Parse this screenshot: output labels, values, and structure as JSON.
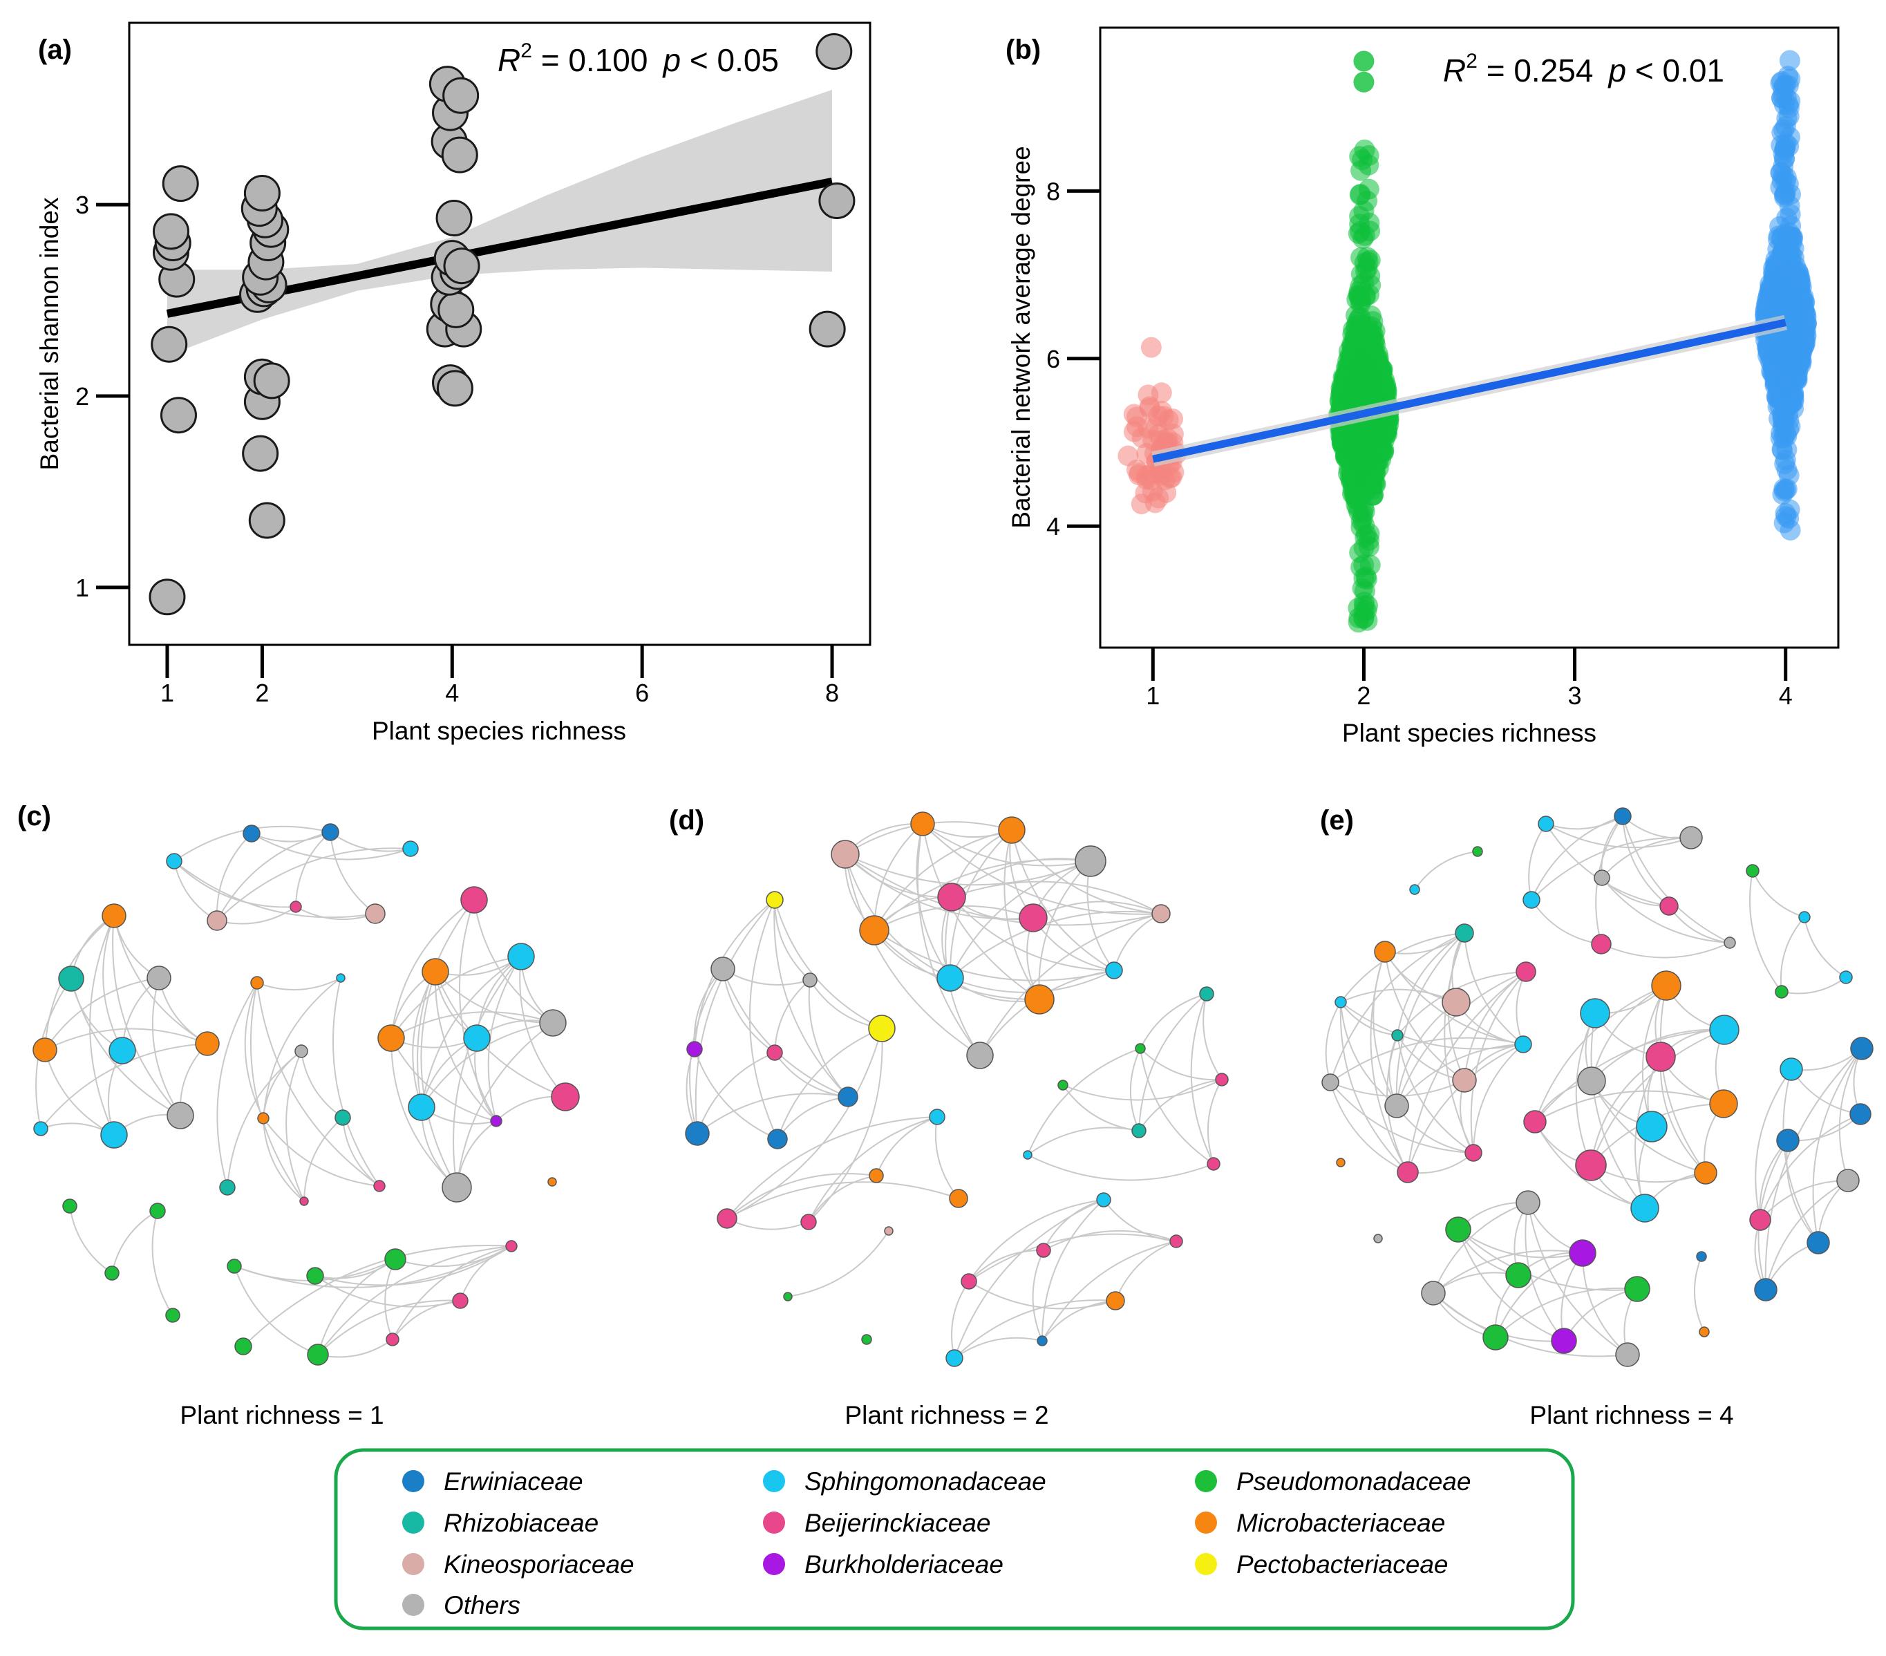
{
  "colors": {
    "Erwiniaceae": "#1a7fc7",
    "Rhizobiaceae": "#17b8a4",
    "Kineosporiaceae": "#d9aca8",
    "Others": "#b3b3b3",
    "Sphingomonadaceae": "#18c6ef",
    "Beijerinckiaceae": "#e8478c",
    "Burkholderiaceae": "#a718e2",
    "Pseudomonadaceae": "#1cbe3a",
    "Microbacteriaceae": "#f68512",
    "Pectobacteriaceae": "#f7ef12",
    "pointGrey": "#b4b4b4",
    "ciGrey": "#d6d6d6",
    "edgeGrey": "#c9c9c9",
    "greenPoints": "#0fbf3a",
    "pinkPoints": "#f4857f",
    "bluePoints": "#3a9bf2",
    "fitBlue": "#1a63e8",
    "legendBorder": "#19a84a"
  },
  "chart_data": [
    {
      "id": "a",
      "panel_label": "(a)",
      "type": "scatter",
      "xlabel": "Plant species richness",
      "ylabel": "Bacterial shannon index",
      "xlim": [
        0.6,
        8.4
      ],
      "ylim": [
        0.7,
        3.95
      ],
      "xticks": [
        1,
        2,
        4,
        6,
        8
      ],
      "yticks": [
        1,
        2,
        3
      ],
      "stats": {
        "r2_prefix": "R",
        "r2_sup": "2",
        "r2_text": " = 0.100",
        "p_prefix": "p",
        "p_text": " < 0.05"
      },
      "fit": {
        "x": [
          1,
          8
        ],
        "y": [
          2.43,
          3.12
        ]
      },
      "ci_upper": [
        [
          1,
          2.66
        ],
        [
          2,
          2.66
        ],
        [
          3,
          2.69
        ],
        [
          4,
          2.83
        ],
        [
          5,
          3.05
        ],
        [
          6,
          3.25
        ],
        [
          7,
          3.43
        ],
        [
          8,
          3.6
        ]
      ],
      "ci_lower": [
        [
          1,
          2.21
        ],
        [
          2,
          2.4
        ],
        [
          3,
          2.55
        ],
        [
          4,
          2.63
        ],
        [
          5,
          2.66
        ],
        [
          6,
          2.67
        ],
        [
          7,
          2.66
        ],
        [
          8,
          2.65
        ]
      ],
      "points": [
        {
          "x": 1.0,
          "y": 0.95
        },
        {
          "x": 1.12,
          "y": 1.9
        },
        {
          "x": 1.02,
          "y": 2.27
        },
        {
          "x": 1.1,
          "y": 2.61
        },
        {
          "x": 1.04,
          "y": 2.75
        },
        {
          "x": 1.06,
          "y": 2.8
        },
        {
          "x": 1.04,
          "y": 2.86
        },
        {
          "x": 1.14,
          "y": 3.11
        },
        {
          "x": 1.98,
          "y": 1.7
        },
        {
          "x": 2.05,
          "y": 1.35
        },
        {
          "x": 2.0,
          "y": 1.97
        },
        {
          "x": 2.0,
          "y": 2.1
        },
        {
          "x": 2.1,
          "y": 2.08
        },
        {
          "x": 1.95,
          "y": 2.53
        },
        {
          "x": 2.02,
          "y": 2.56
        },
        {
          "x": 2.07,
          "y": 2.58
        },
        {
          "x": 1.98,
          "y": 2.62
        },
        {
          "x": 2.04,
          "y": 2.7
        },
        {
          "x": 2.06,
          "y": 2.8
        },
        {
          "x": 2.09,
          "y": 2.87
        },
        {
          "x": 2.03,
          "y": 2.92
        },
        {
          "x": 1.97,
          "y": 2.98
        },
        {
          "x": 2.0,
          "y": 3.06
        },
        {
          "x": 3.98,
          "y": 2.07
        },
        {
          "x": 4.03,
          "y": 2.04
        },
        {
          "x": 3.92,
          "y": 2.35
        },
        {
          "x": 4.12,
          "y": 2.35
        },
        {
          "x": 3.96,
          "y": 2.48
        },
        {
          "x": 4.04,
          "y": 2.45
        },
        {
          "x": 3.97,
          "y": 2.62
        },
        {
          "x": 4.06,
          "y": 2.65
        },
        {
          "x": 4.0,
          "y": 2.72
        },
        {
          "x": 4.1,
          "y": 2.68
        },
        {
          "x": 4.02,
          "y": 2.93
        },
        {
          "x": 3.97,
          "y": 3.33
        },
        {
          "x": 4.08,
          "y": 3.26
        },
        {
          "x": 3.98,
          "y": 3.48
        },
        {
          "x": 3.95,
          "y": 3.63
        },
        {
          "x": 4.09,
          "y": 3.57
        },
        {
          "x": 7.95,
          "y": 2.35
        },
        {
          "x": 8.05,
          "y": 3.02
        },
        {
          "x": 8.02,
          "y": 3.8
        }
      ]
    },
    {
      "id": "b",
      "panel_label": "(b)",
      "type": "scatter",
      "xlabel": "Plant species richness",
      "ylabel": "Bacterial network average degree",
      "xlim": [
        0.75,
        4.25
      ],
      "ylim": [
        2.55,
        9.95
      ],
      "xticks": [
        1,
        2,
        3,
        4
      ],
      "yticks": [
        4,
        6,
        8
      ],
      "stats": {
        "r2_prefix": "R",
        "r2_sup": "2",
        "r2_text": " = 0.254",
        "p_prefix": "p",
        "p_text": " < 0.01"
      },
      "fit": {
        "x": [
          1,
          4
        ],
        "y": [
          4.8,
          6.43
        ]
      },
      "groups": [
        {
          "x": 1,
          "color": "pinkPoints",
          "min": 4.2,
          "max": 6.25,
          "center": 4.9,
          "spread": 0.7,
          "halfwidth": 0.12,
          "n": 60
        },
        {
          "x": 2,
          "color": "greenPoints",
          "min": 2.85,
          "max": 8.5,
          "center": 5.35,
          "spread": 0.85,
          "halfwidth": 0.12,
          "n": 900
        },
        {
          "x": 4,
          "color": "bluePoints",
          "min": 3.95,
          "max": 9.6,
          "center": 6.4,
          "spread": 0.75,
          "halfwidth": 0.1,
          "n": 1100
        }
      ],
      "outliers": [
        {
          "x": 2,
          "y": 9.55,
          "color": "greenPoints"
        },
        {
          "x": 2,
          "y": 9.3,
          "color": "greenPoints"
        },
        {
          "x": 2,
          "y": 2.9,
          "color": "greenPoints"
        }
      ]
    }
  ],
  "networks": [
    {
      "panel_label": "(c)",
      "caption": "Plant richness = 1"
    },
    {
      "panel_label": "(d)",
      "caption": "Plant richness = 2"
    },
    {
      "panel_label": "(e)",
      "caption": "Plant richness = 4"
    }
  ],
  "legend": {
    "items": [
      {
        "label": "Erwiniaceae",
        "color_key": "Erwiniaceae"
      },
      {
        "label": "Sphingomonadaceae",
        "color_key": "Sphingomonadaceae"
      },
      {
        "label": "Pseudomonadaceae",
        "color_key": "Pseudomonadaceae"
      },
      {
        "label": "Rhizobiaceae",
        "color_key": "Rhizobiaceae"
      },
      {
        "label": "Beijerinckiaceae",
        "color_key": "Beijerinckiaceae"
      },
      {
        "label": "Microbacteriaceae",
        "color_key": "Microbacteriaceae"
      },
      {
        "label": "Kineosporiaceae",
        "color_key": "Kineosporiaceae"
      },
      {
        "label": "Burkholderiaceae",
        "color_key": "Burkholderiaceae"
      },
      {
        "label": "Pectobacteriaceae",
        "color_key": "Pectobacteriaceae"
      },
      {
        "label": "Others",
        "color_key": "Others"
      }
    ]
  }
}
